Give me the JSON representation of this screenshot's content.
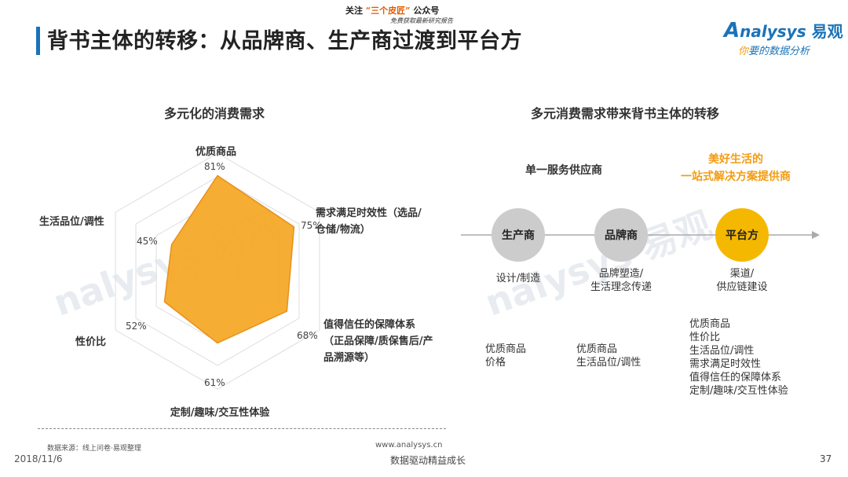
{
  "header": {
    "title": "背书主体的转移：从品牌商、生产商过渡到平台方",
    "promo_line1_a": "关注",
    "promo_line1_hl": "“三个皮匠”",
    "promo_line1_b": "公众号",
    "promo_line2": "免费获取最新研究报告",
    "logo_en": "nalysys",
    "logo_prefix": "A",
    "logo_cn": "易观",
    "slogan_a": "你",
    "slogan_b": "要的数据分析"
  },
  "left": {
    "title": "多元化的消费需求"
  },
  "right": {
    "title": "多元消费需求带来背书主体的转移",
    "single_label": "单一服务供应商",
    "platform_label_line1": "美好生活的",
    "platform_label_line2": "一站式解决方案提供商",
    "nodes": [
      {
        "label": "生产商",
        "desc": [
          "设计/制造"
        ],
        "needs": [
          "优质商品",
          "价格"
        ]
      },
      {
        "label": "品牌商",
        "desc": [
          "品牌塑造/",
          "生活理念传递"
        ],
        "needs": [
          "优质商品",
          "生活品位/调性"
        ]
      },
      {
        "label": "平台方",
        "desc": [
          "渠道/",
          "供应链建设"
        ],
        "needs": [
          "优质商品",
          "性价比",
          "生活品位/调性",
          "需求满足时效性",
          "值得信任的保障体系",
          "定制/趣味/交互性体验"
        ]
      }
    ]
  },
  "chart_data": {
    "type": "radar",
    "title": "多元化的消费需求",
    "max": 100,
    "axes": [
      {
        "label_lines": [
          "优质商品"
        ],
        "value": 81,
        "value_label": "81%"
      },
      {
        "label_lines": [
          "需求满足时效性（选品/",
          "仓储/物流）"
        ],
        "value": 75,
        "value_label": "75%"
      },
      {
        "label_lines": [
          "值得信任的保障体系",
          "（正品保障/质保售后/产",
          "品溯源等）"
        ],
        "value": 68,
        "value_label": "68%"
      },
      {
        "label_lines": [
          "定制/趣味/交互性体验"
        ],
        "value": 61,
        "value_label": "61%"
      },
      {
        "label_lines": [
          "性价比"
        ],
        "value": 52,
        "value_label": "52%"
      },
      {
        "label_lines": [
          "生活品位/调性"
        ],
        "value": 45,
        "value_label": "45%"
      }
    ],
    "colors": {
      "fill": "#f5a623",
      "stroke": "#e8901a",
      "grid": "#dddddd"
    }
  },
  "footer": {
    "source": "数据来源：线上问卷·易观整理",
    "site": "www.analysys.cn",
    "date": "2018/11/6",
    "tagline": "数据驱动精益成长",
    "page": "37"
  }
}
